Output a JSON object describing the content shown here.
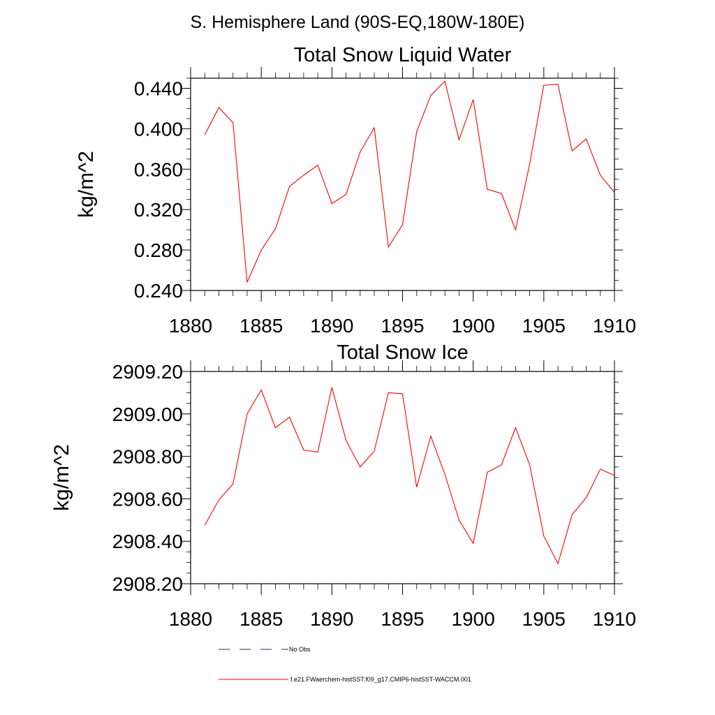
{
  "page": {
    "title": "S. Hemisphere Land (90S-EQ,180W-180E)"
  },
  "chart_data": [
    {
      "type": "line",
      "title": "Total Snow Liquid Water",
      "xlabel": "",
      "ylabel": "kg/m^2",
      "xlim": [
        1880,
        1910
      ],
      "ylim": [
        0.24,
        0.45
      ],
      "xticks": [
        1880,
        1885,
        1890,
        1895,
        1900,
        1905,
        1910
      ],
      "yticks": [
        0.24,
        0.28,
        0.32,
        0.36,
        0.4,
        0.44
      ],
      "ytick_labels": [
        "0.240",
        "0.280",
        "0.320",
        "0.360",
        "0.400",
        "0.440"
      ],
      "grid": false,
      "series": [
        {
          "name": "f.e21.FWaerchem-histSST.f09_g17.CMIP6-histSST-WACCM.001",
          "color": "#ff0000",
          "x": [
            1881,
            1882,
            1883,
            1884,
            1885,
            1886,
            1887,
            1888,
            1889,
            1890,
            1891,
            1892,
            1893,
            1894,
            1895,
            1896,
            1897,
            1898,
            1899,
            1900,
            1901,
            1902,
            1903,
            1904,
            1905,
            1906,
            1907,
            1908,
            1909,
            1910
          ],
          "y": [
            0.394,
            0.421,
            0.406,
            0.248,
            0.28,
            0.301,
            0.343,
            0.354,
            0.364,
            0.326,
            0.335,
            0.377,
            0.401,
            0.283,
            0.305,
            0.397,
            0.433,
            0.447,
            0.389,
            0.429,
            0.34,
            0.336,
            0.3,
            0.365,
            0.443,
            0.444,
            0.378,
            0.39,
            0.354,
            0.337
          ]
        }
      ]
    },
    {
      "type": "line",
      "title": "Total Snow Ice",
      "xlabel": "",
      "ylabel": "kg/m^2",
      "xlim": [
        1880,
        1910
      ],
      "ylim": [
        2908.2,
        2909.2
      ],
      "xticks": [
        1880,
        1885,
        1890,
        1895,
        1900,
        1905,
        1910
      ],
      "yticks": [
        2908.2,
        2908.4,
        2908.6,
        2908.8,
        2909.0,
        2909.2
      ],
      "ytick_labels": [
        "2908.20",
        "2908.40",
        "2908.60",
        "2908.80",
        "2909.00",
        "2909.20"
      ],
      "grid": false,
      "series": [
        {
          "name": "f.e21.FWaerchem-histSST.f09_g17.CMIP6-histSST-WACCM.001",
          "color": "#ff0000",
          "x": [
            1881,
            1882,
            1883,
            1884,
            1885,
            1886,
            1887,
            1888,
            1889,
            1890,
            1891,
            1892,
            1893,
            1894,
            1895,
            1896,
            1897,
            1898,
            1899,
            1900,
            1901,
            1902,
            1903,
            1904,
            1905,
            1906,
            1907,
            1908,
            1909,
            1910
          ],
          "y": [
            2908.475,
            2908.595,
            2908.67,
            2909.0,
            2909.113,
            2908.935,
            2908.985,
            2908.83,
            2908.82,
            2909.125,
            2908.875,
            2908.75,
            2908.825,
            2909.1,
            2909.095,
            2908.655,
            2908.895,
            2908.715,
            2908.5,
            2908.39,
            2908.725,
            2908.76,
            2908.935,
            2908.76,
            2908.425,
            2908.295,
            2908.525,
            2908.605,
            2908.74,
            2908.71
          ]
        }
      ]
    }
  ],
  "legend": [
    {
      "label": "No Obs",
      "style": "dashed",
      "color": "#2b2b6b"
    },
    {
      "label": "f.e21.FWaerchem-histSST.f09_g17.CMIP6-histSST-WACCM.001",
      "style": "solid",
      "color": "#ff0000"
    }
  ]
}
